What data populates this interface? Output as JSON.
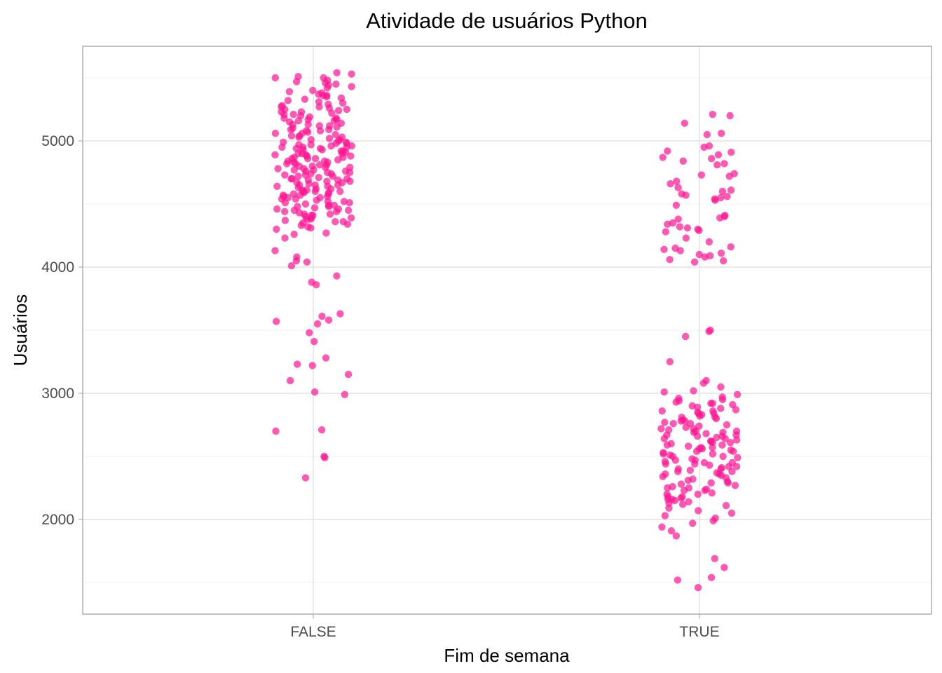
{
  "chart_data": {
    "type": "scatter",
    "title": "Atividade de usuários Python",
    "xlabel": "Fim de semana",
    "ylabel": "Usuários",
    "categories": [
      "FALSE",
      "TRUE"
    ],
    "x_ticks": [
      "FALSE",
      "TRUE"
    ],
    "y_ticks": [
      2000,
      3000,
      4000,
      5000
    ],
    "y_tick_labels": [
      "2000",
      "3000",
      "4000",
      "5000"
    ],
    "ylim": [
      1250,
      5750
    ],
    "grid": true,
    "legend": "none",
    "point_color": "#FF1493",
    "point_opacity": 0.7,
    "jitter_width": 0.1,
    "series": [
      {
        "category": "FALSE",
        "values": [
          5460,
          5510,
          5500,
          5530,
          5420,
          5350,
          5320,
          5300,
          5260,
          5240,
          5220,
          5200,
          5180,
          5150,
          5120,
          5100,
          5090,
          5050,
          5030,
          5010,
          4990,
          4970,
          4960,
          4950,
          4940,
          4930,
          4910,
          4900,
          4880,
          4860,
          4850,
          4840,
          4820,
          4800,
          4780,
          4770,
          4750,
          4740,
          4720,
          4700,
          4690,
          4670,
          4650,
          4630,
          4620,
          4600,
          4590,
          4570,
          4550,
          4540,
          4520,
          4500,
          4480,
          4450,
          4420,
          4400,
          4380,
          4340,
          4320,
          4300,
          4260,
          4230,
          4270,
          4130,
          4080,
          4050,
          4040,
          4010,
          3930,
          3880,
          3860,
          3630,
          3610,
          3580,
          3570,
          3550,
          3480,
          3410,
          3280,
          3230,
          3220,
          3150,
          3100,
          3010,
          2990,
          2710,
          2700,
          2500,
          2490,
          2330,
          5540,
          5480,
          5470,
          5450,
          5430,
          5400,
          5390,
          5370,
          5360,
          5340,
          5310,
          5290,
          5270,
          5250,
          5230,
          5210,
          5190,
          5170,
          5160,
          5140,
          5130,
          5110,
          5080,
          5070,
          5060,
          5040,
          5020,
          5000,
          4980,
          4960,
          4940,
          4920,
          4900,
          4890,
          4870,
          4860,
          4840,
          4830,
          4810,
          4800,
          4790,
          4760,
          4750,
          4730,
          4710,
          4700,
          4680,
          4660,
          4650,
          4640,
          4610,
          4600,
          4580,
          4570,
          4560,
          4530,
          4510,
          4490,
          4470,
          4460,
          4440,
          4430,
          4410,
          4390,
          4370,
          4360,
          4330,
          5500,
          5380,
          5330,
          5280,
          5250,
          5210,
          5180,
          5160,
          5120,
          5090,
          5060,
          5040,
          5010,
          4990,
          4970,
          4950,
          4920,
          4900,
          4880,
          4860,
          4830,
          4810,
          4790,
          4770,
          4740,
          4720,
          4690,
          4670,
          4650,
          4620,
          4600,
          4580,
          4560,
          4540,
          4510,
          4490,
          4460,
          4440,
          4410,
          4380,
          4350,
          5440,
          5360,
          5270,
          5230,
          5170,
          5130,
          5080,
          5030,
          4980,
          4950,
          4930,
          4890,
          4870,
          4820,
          4780,
          4760,
          4730,
          4700,
          4680,
          4640,
          4610,
          4590,
          4550,
          4520,
          4480,
          4450,
          4420,
          4390,
          4360,
          4310
        ]
      },
      {
        "category": "TRUE",
        "values": [
          5210,
          5200,
          5140,
          5060,
          5050,
          4960,
          4950,
          4920,
          4910,
          4890,
          4870,
          4860,
          4840,
          4820,
          4810,
          4740,
          4730,
          4720,
          4680,
          4660,
          4630,
          4610,
          4600,
          4580,
          4570,
          4560,
          4550,
          4540,
          4530,
          4490,
          4410,
          4400,
          4390,
          4380,
          4350,
          4340,
          4320,
          4310,
          4300,
          4290,
          4280,
          4230,
          4200,
          4160,
          4150,
          4140,
          4130,
          4110,
          4100,
          4090,
          4080,
          4060,
          4050,
          4040,
          3500,
          3490,
          3450,
          3250,
          3100,
          3080,
          3050,
          3020,
          3010,
          2990,
          2970,
          2950,
          2940,
          2930,
          2920,
          2910,
          2900,
          2890,
          2870,
          2860,
          2850,
          2840,
          2830,
          2820,
          2810,
          2800,
          2790,
          2780,
          2770,
          2760,
          2750,
          2740,
          2730,
          2720,
          2710,
          2700,
          2690,
          2680,
          2670,
          2660,
          2650,
          2640,
          2630,
          2620,
          2610,
          2600,
          2590,
          2580,
          2570,
          2560,
          2550,
          2540,
          2530,
          2520,
          2510,
          2500,
          2490,
          2480,
          2470,
          2460,
          2450,
          2440,
          2430,
          2420,
          2410,
          2400,
          2390,
          2380,
          2370,
          2360,
          2340,
          2330,
          2320,
          2300,
          2290,
          2280,
          2260,
          2250,
          2240,
          2230,
          2210,
          2200,
          2180,
          2170,
          2160,
          2150,
          2130,
          2120,
          2110,
          2090,
          2070,
          2050,
          2030,
          2010,
          1990,
          1970,
          1940,
          1910,
          1870,
          1690,
          1620,
          1540,
          1520,
          1460,
          2960,
          2880,
          2860,
          2810,
          2780,
          2760,
          2720,
          2690,
          2670,
          2640,
          2610,
          2590,
          2570,
          2540,
          2500,
          2470,
          2440,
          2400,
          2380,
          2350,
          2310,
          2270,
          2230,
          2180,
          2140,
          2920,
          2840,
          2700,
          2660,
          2620,
          2560,
          2520,
          2450,
          2420,
          2360,
          2290,
          2250,
          2200,
          2160
        ]
      }
    ]
  }
}
